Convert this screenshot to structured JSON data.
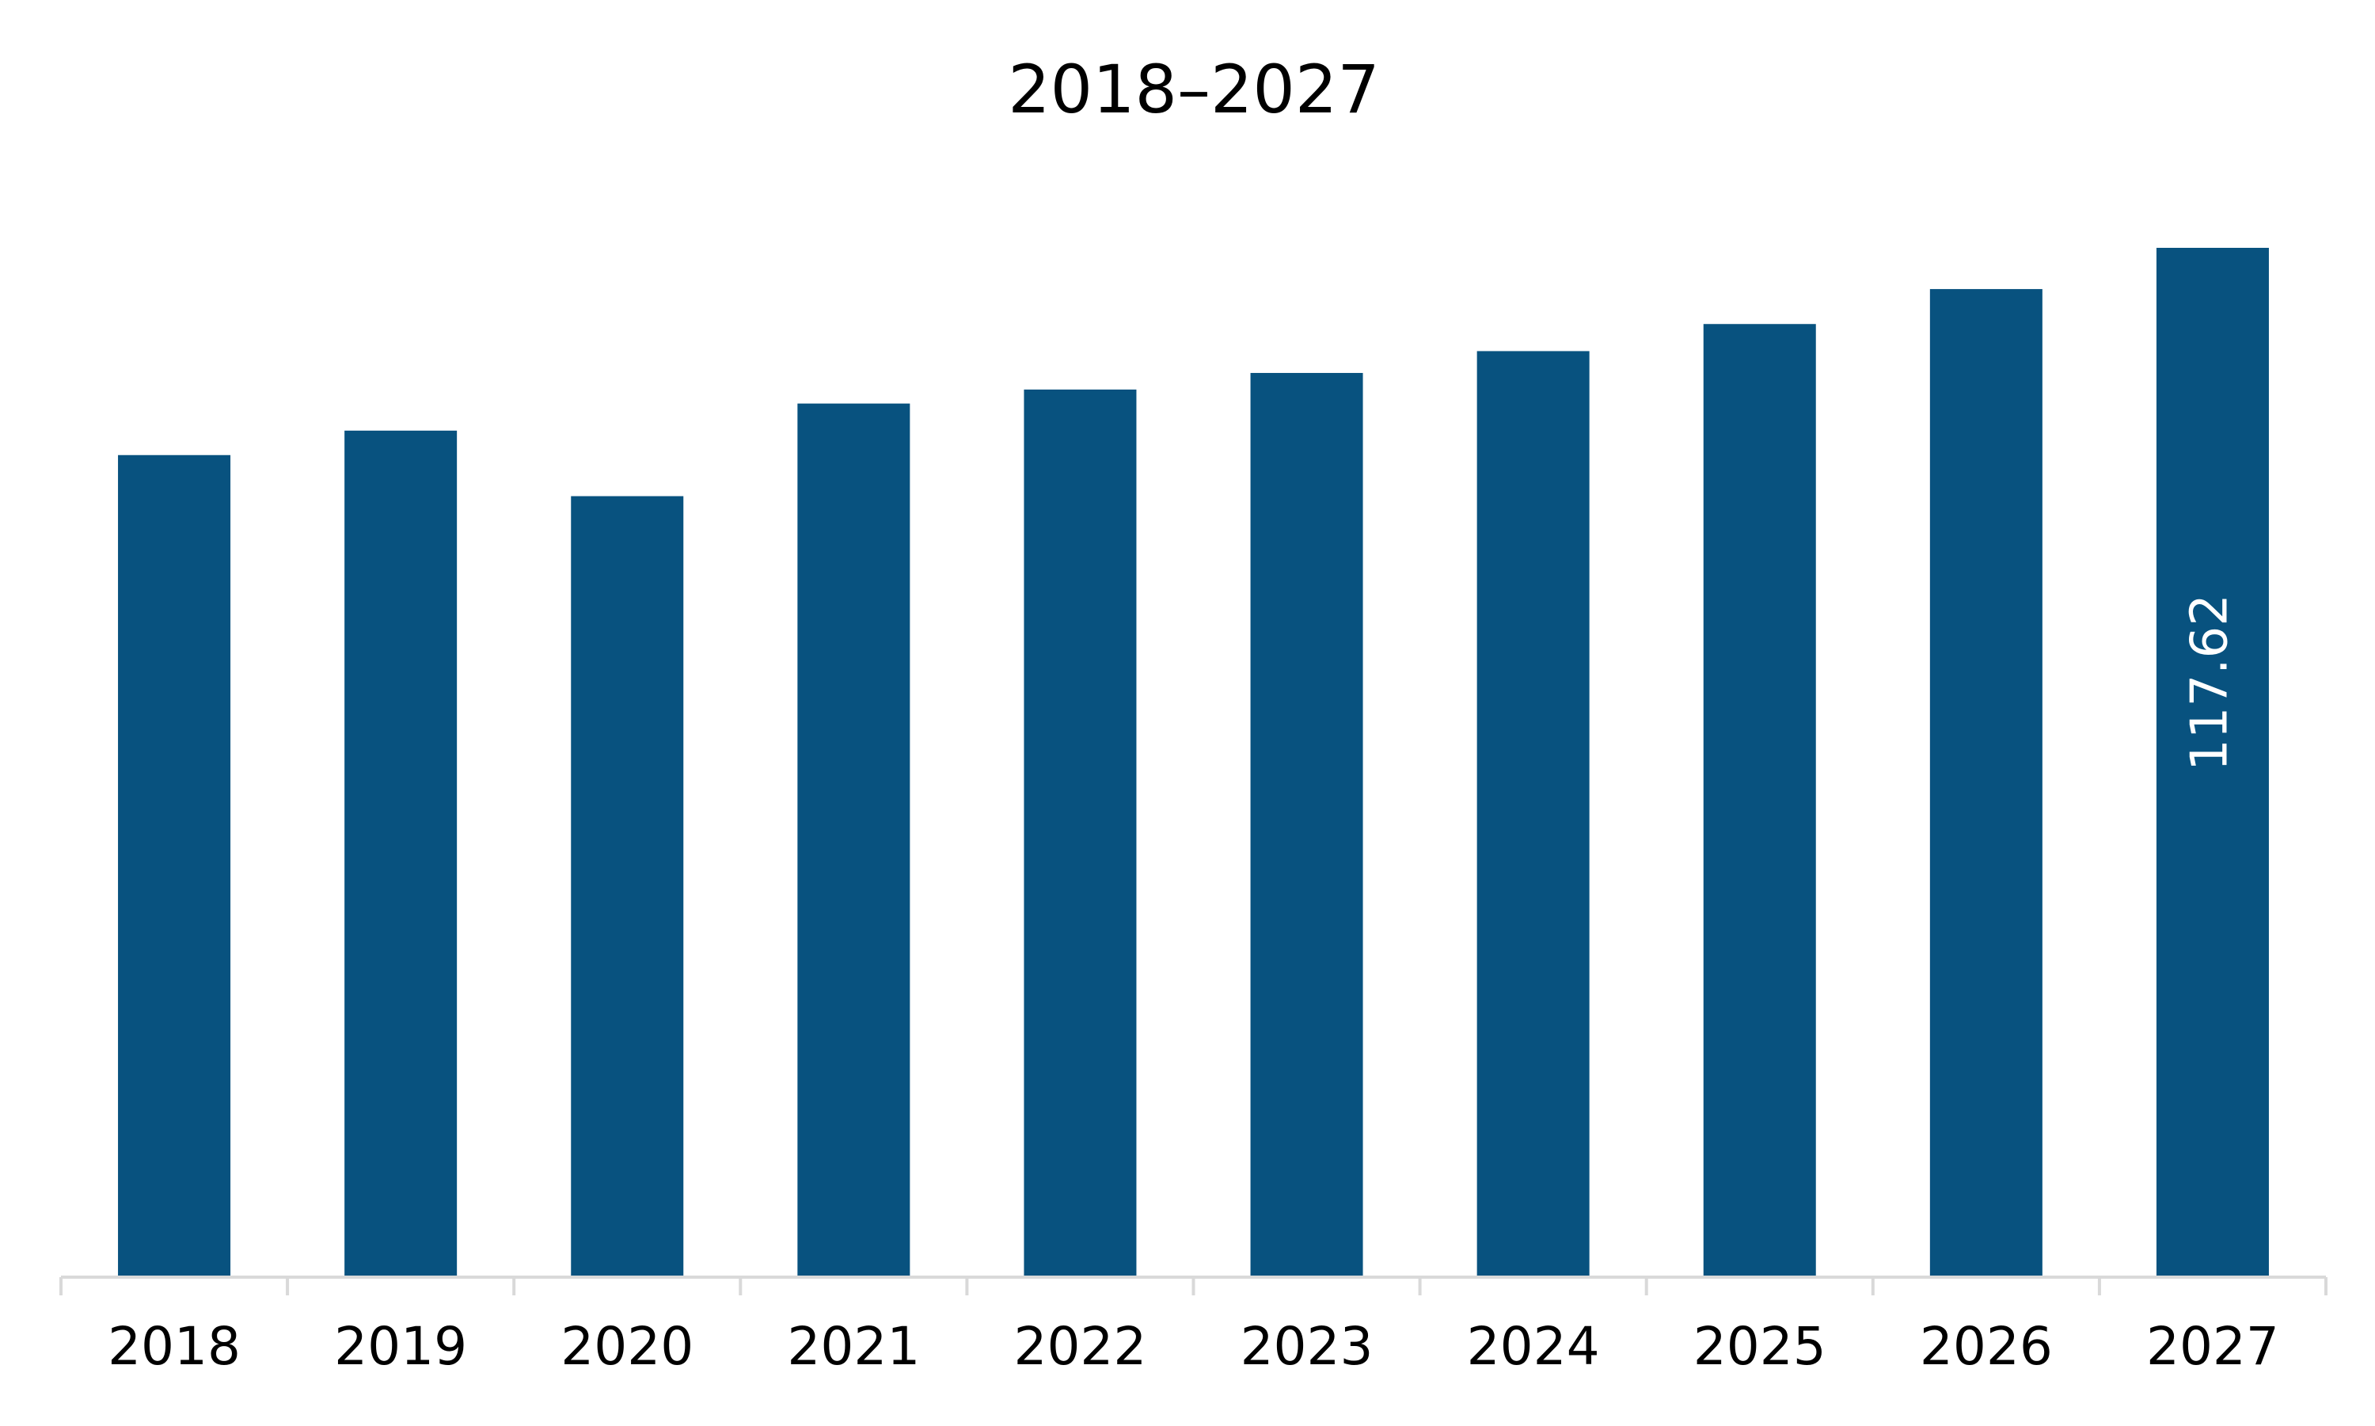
{
  "chart_data": {
    "type": "bar",
    "title": "2018–2027",
    "categories": [
      "2018",
      "2019",
      "2020",
      "2021",
      "2022",
      "2023",
      "2024",
      "2025",
      "2026",
      "2027"
    ],
    "values": [
      93.9,
      96.7,
      89.2,
      99.8,
      101.4,
      103.3,
      105.8,
      108.9,
      112.9,
      117.62
    ],
    "value_labels": [
      null,
      null,
      null,
      null,
      null,
      null,
      null,
      null,
      null,
      "117.62"
    ],
    "color": "#08527f",
    "grid": false
  }
}
